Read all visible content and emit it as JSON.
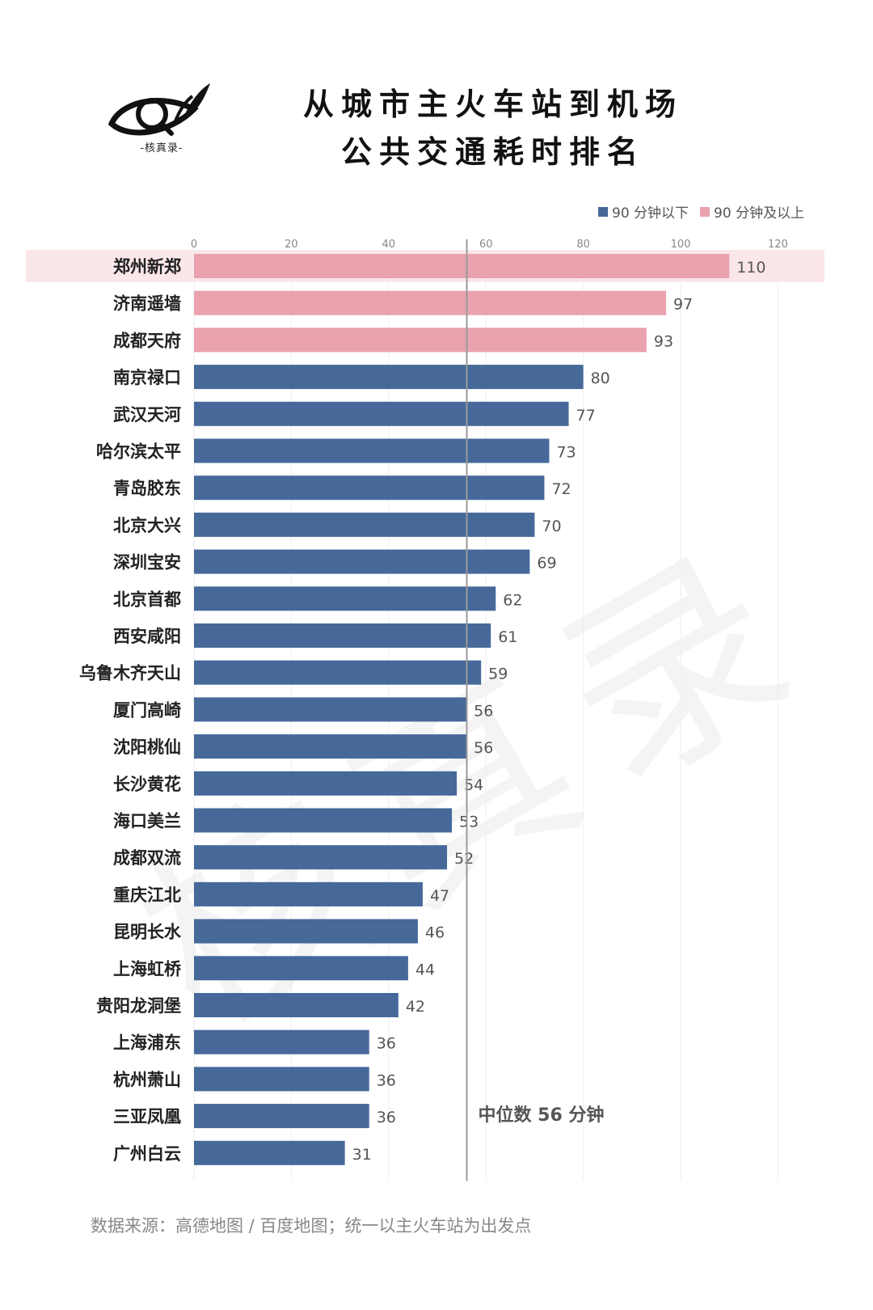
{
  "header": {
    "title_line1": "从城市主火车站到机场",
    "title_line2": "公共交通耗时排名",
    "logo_caption": "-核真录-"
  },
  "watermark": "核真录",
  "colors": {
    "below": "#46699A",
    "above": "#E9A2AE",
    "highlight_row": "#FBE6E9",
    "median_line": "#9A9A9A"
  },
  "legend": [
    {
      "label": "90 分钟以下",
      "color": "#46699A"
    },
    {
      "label": "90 分钟及以上",
      "color": "#E9A2AE"
    }
  ],
  "chart_data": {
    "type": "bar",
    "orientation": "horizontal",
    "categories": [
      "郑州新郑",
      "济南遥墙",
      "成都天府",
      "南京禄口",
      "武汉天河",
      "哈尔滨太平",
      "青岛胶东",
      "北京大兴",
      "深圳宝安",
      "北京首都",
      "西安咸阳",
      "乌鲁木齐天山",
      "厦门高崎",
      "沈阳桃仙",
      "长沙黄花",
      "海口美兰",
      "成都双流",
      "重庆江北",
      "昆明长水",
      "上海虹桥",
      "贵阳龙洞堡",
      "上海浦东",
      "杭州萧山",
      "三亚凤凰",
      "广州白云"
    ],
    "values": [
      110,
      97,
      93,
      80,
      77,
      73,
      72,
      70,
      69,
      62,
      61,
      59,
      56,
      56,
      54,
      53,
      52,
      47,
      46,
      44,
      42,
      36,
      36,
      36,
      31
    ],
    "xlim": [
      0,
      130
    ],
    "xticks": [
      0,
      20,
      40,
      60,
      80,
      100,
      120
    ],
    "threshold": 90,
    "median": 56,
    "median_label": "中位数 56 分钟",
    "highlighted_category": "郑州新郑",
    "grid": true,
    "legend_position": "top-right"
  },
  "footer": {
    "source": "数据来源：高德地图 / 百度地图；统一以主火车站为出发点"
  }
}
